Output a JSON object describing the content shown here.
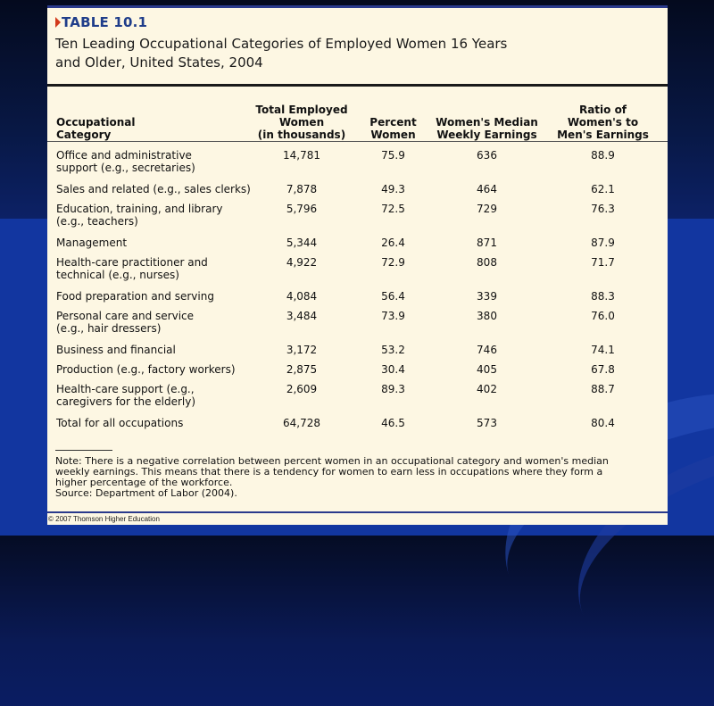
{
  "table_id": "TABLE 10.1",
  "title_line1": "Ten Leading Occupational Categories of Employed Women 16 Years",
  "title_line2": "and Older, United States, 2004",
  "headers": {
    "occupation": [
      "Occupational",
      "Category"
    ],
    "total": [
      "Total Employed",
      "Women",
      "(in thousands)"
    ],
    "percent": [
      "Percent",
      "Women"
    ],
    "earnings": [
      "Women's Median",
      "Weekly Earnings"
    ],
    "ratio": [
      "Ratio of",
      "Women's to",
      "Men's Earnings"
    ]
  },
  "rows": [
    {
      "category": [
        "Office and administrative",
        "support (e.g., secretaries)"
      ],
      "total": "14,781",
      "percent": "75.9",
      "earnings": "636",
      "ratio": "88.9"
    },
    {
      "category": [
        "Sales and related (e.g., sales clerks)"
      ],
      "total": "7,878",
      "percent": "49.3",
      "earnings": "464",
      "ratio": "62.1"
    },
    {
      "category": [
        "Education, training, and library",
        "(e.g., teachers)"
      ],
      "total": "5,796",
      "percent": "72.5",
      "earnings": "729",
      "ratio": "76.3"
    },
    {
      "category": [
        "Management"
      ],
      "total": "5,344",
      "percent": "26.4",
      "earnings": "871",
      "ratio": "87.9"
    },
    {
      "category": [
        "Health-care practitioner and",
        "technical (e.g., nurses)"
      ],
      "total": "4,922",
      "percent": "72.9",
      "earnings": "808",
      "ratio": "71.7"
    },
    {
      "category": [
        "Food preparation and serving"
      ],
      "total": "4,084",
      "percent": "56.4",
      "earnings": "339",
      "ratio": "88.3"
    },
    {
      "category": [
        "Personal care and service",
        "(e.g., hair dressers)"
      ],
      "total": "3,484",
      "percent": "73.9",
      "earnings": "380",
      "ratio": "76.0"
    },
    {
      "category": [
        "Business and financial"
      ],
      "total": "3,172",
      "percent": "53.2",
      "earnings": "746",
      "ratio": "74.1"
    },
    {
      "category": [
        "Production (e.g., factory workers)"
      ],
      "total": "2,875",
      "percent": "30.4",
      "earnings": "405",
      "ratio": "67.8"
    },
    {
      "category": [
        "Health-care support (e.g.,",
        "caregivers for the elderly)"
      ],
      "total": "2,609",
      "percent": "89.3",
      "earnings": "402",
      "ratio": "88.7"
    },
    {
      "category": [
        "Total for all occupations"
      ],
      "total": "64,728",
      "percent": "46.5",
      "earnings": "573",
      "ratio": "80.4"
    }
  ],
  "note_lines": [
    "Note: There is a negative correlation between percent women in an occupational category and women's median",
    "weekly earnings. This means that there is a tendency for women to earn less in occupations where they form a",
    "higher percentage of the workforce."
  ],
  "source": "Source: Department of Labor (2004).",
  "copyright": "© 2007 Thomson Higher Education",
  "colors": {
    "card_background": "#fdf7e3",
    "accent_blue": "#1f3d8a",
    "marker_red": "#d23a1c"
  }
}
